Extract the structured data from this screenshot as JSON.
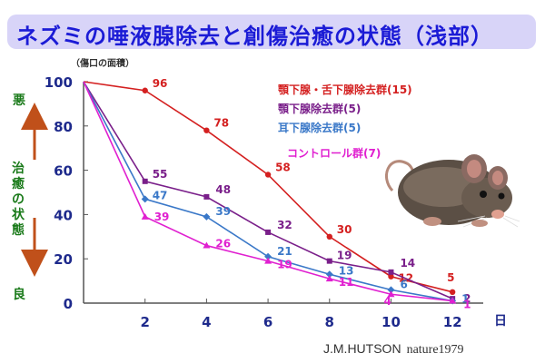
{
  "title": "ネズミの唾液腺除去と創傷治癒の状態（浅部）",
  "area_note": "（傷口の面積）",
  "side_labels": {
    "bad": "悪",
    "state": "治癒の状態",
    "good": "良"
  },
  "credit": {
    "author": "J.M.HUTSON",
    "journal": "nature1979"
  },
  "chart_data": {
    "type": "line",
    "title": "ネズミの唾液腺除去と創傷治癒の状態（浅部）",
    "xlabel": "日",
    "ylabel": "（傷口の面積）",
    "xlim": [
      0,
      13
    ],
    "ylim": [
      0,
      100
    ],
    "x_ticks": [
      2,
      4,
      6,
      8,
      10,
      12
    ],
    "y_ticks": [
      0,
      20,
      40,
      60,
      80,
      100
    ],
    "legend_position": "top-right",
    "series": [
      {
        "name": "顎下腺・舌下腺除去群(15)",
        "color": "#d42020",
        "marker": "circle",
        "x": [
          0,
          2,
          4,
          6,
          8,
          10,
          12
        ],
        "y": [
          100,
          96,
          78,
          58,
          30,
          12,
          5
        ],
        "labels": [
          "",
          "96",
          "78",
          "58",
          "30",
          "12",
          "5"
        ]
      },
      {
        "name": "顎下腺除去群(5)",
        "color": "#7a1f8a",
        "marker": "square",
        "x": [
          0,
          2,
          4,
          6,
          8,
          10,
          12
        ],
        "y": [
          100,
          55,
          48,
          32,
          19,
          14,
          2
        ],
        "labels": [
          "",
          "55",
          "48",
          "32",
          "19",
          "14",
          "2"
        ]
      },
      {
        "name": "耳下腺除去群(5)",
        "color": "#3a78c8",
        "marker": "diamond",
        "x": [
          0,
          2,
          4,
          6,
          8,
          10,
          12
        ],
        "y": [
          100,
          47,
          39,
          21,
          13,
          6,
          1
        ],
        "labels": [
          "",
          "47",
          "39",
          "21",
          "13",
          "6",
          "1"
        ]
      },
      {
        "name": "コントロール群(7)",
        "color": "#e020d0",
        "marker": "triangle",
        "x": [
          0,
          2,
          4,
          6,
          8,
          10,
          12
        ],
        "y": [
          100,
          39,
          26,
          19,
          11,
          4,
          1
        ],
        "labels": [
          "",
          "39",
          "26",
          "19",
          "11",
          "4",
          "1"
        ]
      }
    ]
  }
}
